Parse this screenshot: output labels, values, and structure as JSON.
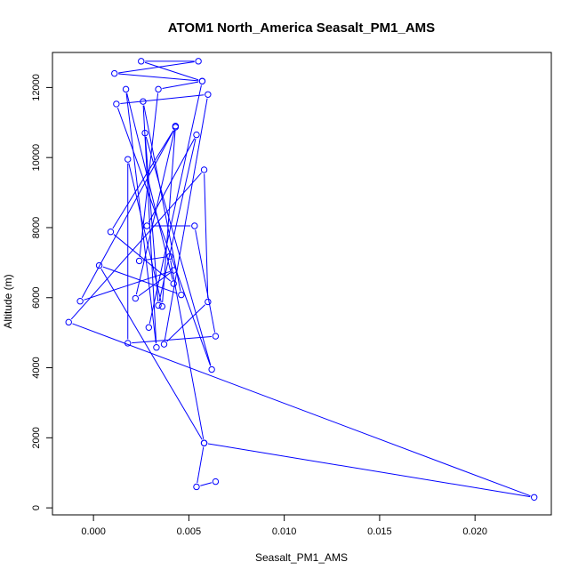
{
  "chart_data": {
    "type": "line",
    "title": "ATOM1 North_America Seasalt_PM1_AMS",
    "xlabel": "Seasalt_PM1_AMS",
    "ylabel": "Altitude (m)",
    "xlim": [
      -0.00215,
      0.024
    ],
    "ylim": [
      -200,
      13000
    ],
    "xticks": [
      0.0,
      0.005,
      0.01,
      0.015,
      0.02
    ],
    "xtick_labels": [
      "0.000",
      "0.005",
      "0.010",
      "0.015",
      "0.020"
    ],
    "yticks": [
      0,
      2000,
      4000,
      6000,
      8000,
      10000,
      12000
    ],
    "ytick_labels": [
      "0",
      "2000",
      "4000",
      "6000",
      "8000",
      "10000",
      "12000"
    ],
    "grid": false,
    "legend": "none",
    "color": "#0000ff",
    "series": [
      {
        "marker": "open-circle",
        "points": [
          [
            0.0064,
            750
          ],
          [
            0.0054,
            600
          ],
          [
            0.0058,
            1850
          ],
          [
            0.0231,
            300
          ],
          [
            -0.0013,
            5300
          ],
          [
            0.0058,
            9650
          ],
          [
            0.006,
            5880
          ],
          [
            0.0037,
            4670
          ],
          [
            0.006,
            11800
          ],
          [
            0.0012,
            11530
          ],
          [
            0.0062,
            3950
          ],
          [
            0.0027,
            10700
          ],
          [
            0.0034,
            5780
          ],
          [
            0.0054,
            10650
          ],
          [
            0.0028,
            8050
          ],
          [
            0.0053,
            8050
          ],
          [
            0.0064,
            4900
          ],
          [
            0.0018,
            4700
          ],
          [
            0.0018,
            9950
          ],
          [
            0.0036,
            5750
          ],
          [
            0.0043,
            10900
          ],
          [
            0.0022,
            5980
          ],
          [
            0.0042,
            6780
          ],
          [
            -0.0007,
            5900
          ],
          [
            0.0043,
            10870
          ],
          [
            0.0009,
            7880
          ],
          [
            0.0042,
            6400
          ],
          [
            0.0017,
            11950
          ],
          [
            0.0033,
            4580
          ],
          [
            0.0026,
            11600
          ],
          [
            0.0046,
            6080
          ],
          [
            0.0003,
            6920
          ],
          [
            0.0058,
            1850
          ],
          [
            0.004,
            7180
          ],
          [
            0.0024,
            7050
          ],
          [
            0.0034,
            11950
          ],
          [
            0.0057,
            12180
          ],
          [
            0.0025,
            12750
          ],
          [
            0.0055,
            12750
          ],
          [
            0.0011,
            12400
          ],
          [
            0.0057,
            12180
          ],
          [
            0.0029,
            5150
          ]
        ]
      }
    ]
  }
}
